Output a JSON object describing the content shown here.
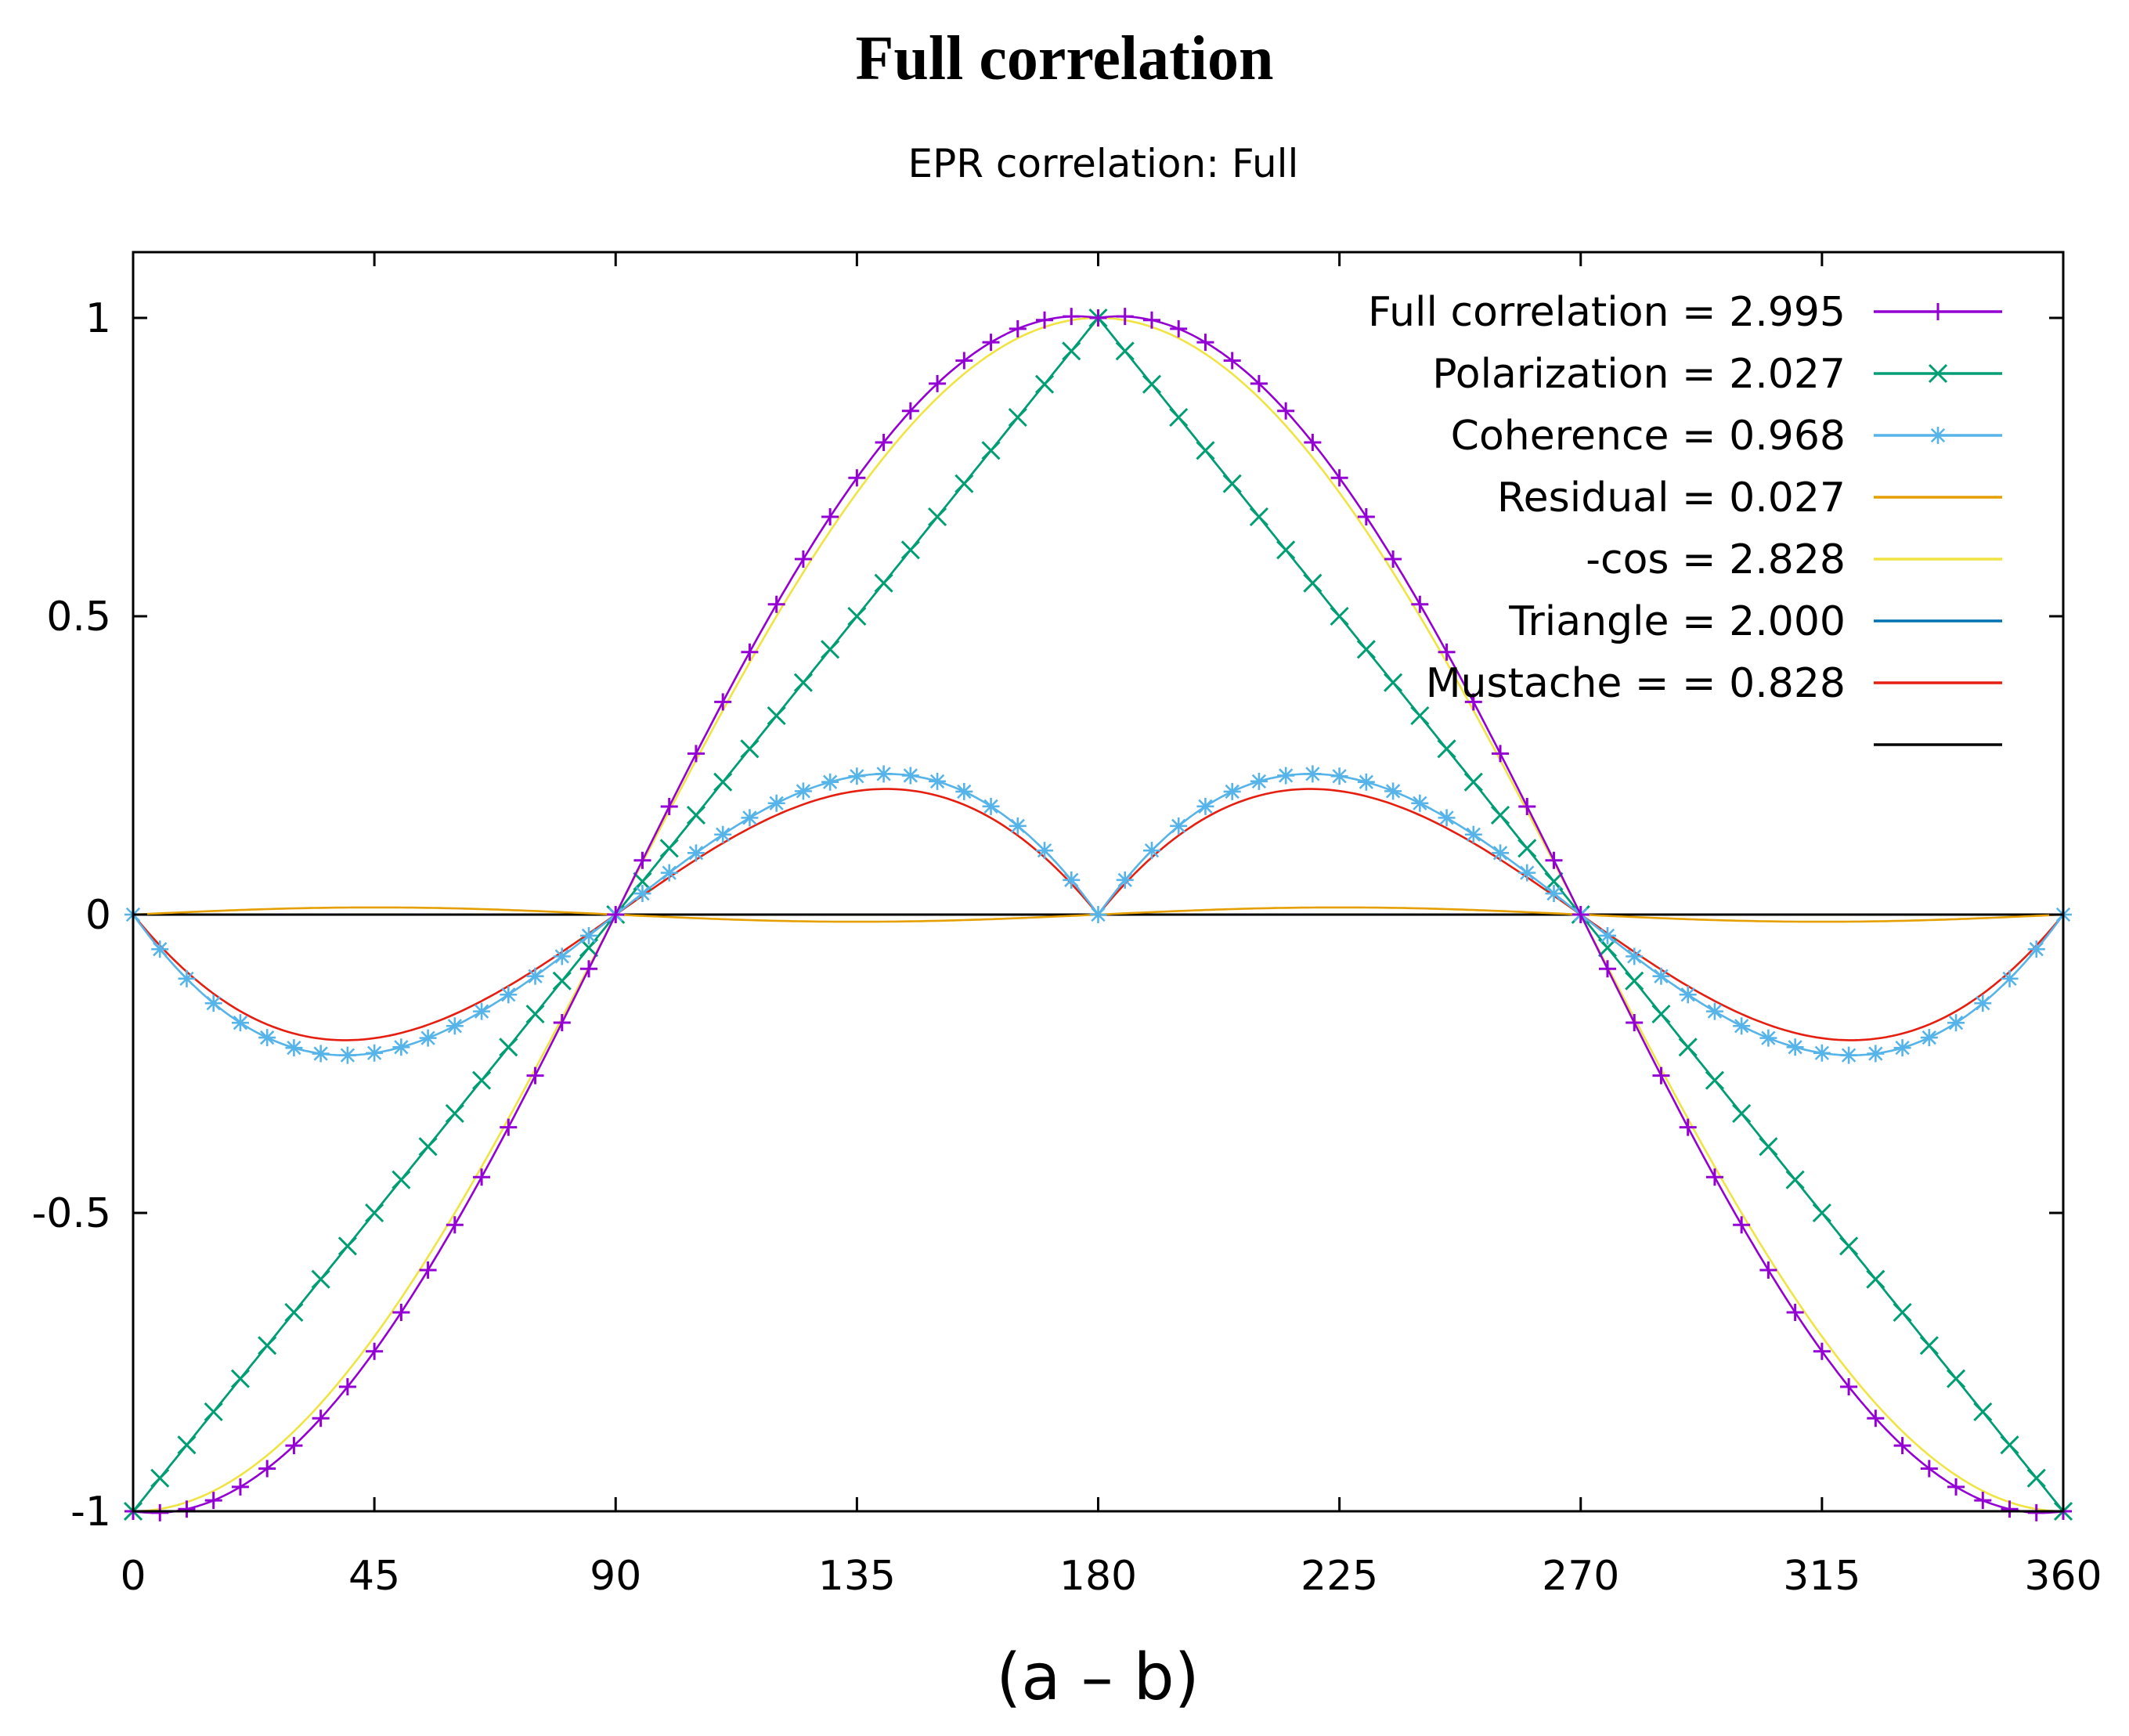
{
  "figure_title": "Full correlation",
  "chart_data": {
    "type": "line",
    "title": "EPR correlation: Full",
    "xlabel": "(a – b)",
    "ylabel": "",
    "xlim": [
      0,
      360
    ],
    "ylim": [
      -1,
      1.1
    ],
    "xticks": [
      "0",
      "45",
      "90",
      "135",
      "180",
      "225",
      "270",
      "315",
      "360"
    ],
    "yticks": [
      "-1",
      "-0.5",
      "0",
      "0.5",
      "1"
    ],
    "grid": false,
    "legend_position": "top-right",
    "series": [
      {
        "name": "Full correlation = 2.995",
        "color": "#9400d3",
        "marker": "plus",
        "formula": "full"
      },
      {
        "name": "Polarization = 2.027",
        "color": "#009e73",
        "marker": "cross",
        "formula": "triangle"
      },
      {
        "name": "Coherence = 0.968",
        "color": "#56b4e9",
        "marker": "star",
        "formula": "coherence"
      },
      {
        "name": "Residual = 0.027",
        "color": "#e69f00",
        "marker": "none",
        "formula": "residual"
      },
      {
        "name": "-cos = 2.828",
        "color": "#f0e442",
        "marker": "none",
        "formula": "negcos"
      },
      {
        "name": "Triangle = 2.000",
        "color": "#0072b2",
        "marker": "none",
        "formula": "triangle"
      },
      {
        "name": "Mustache = = 0.828",
        "color": "#e51e10",
        "marker": "none",
        "formula": "mustache"
      },
      {
        "name": "",
        "color": "#000000",
        "marker": "none",
        "formula": "zero"
      }
    ]
  }
}
